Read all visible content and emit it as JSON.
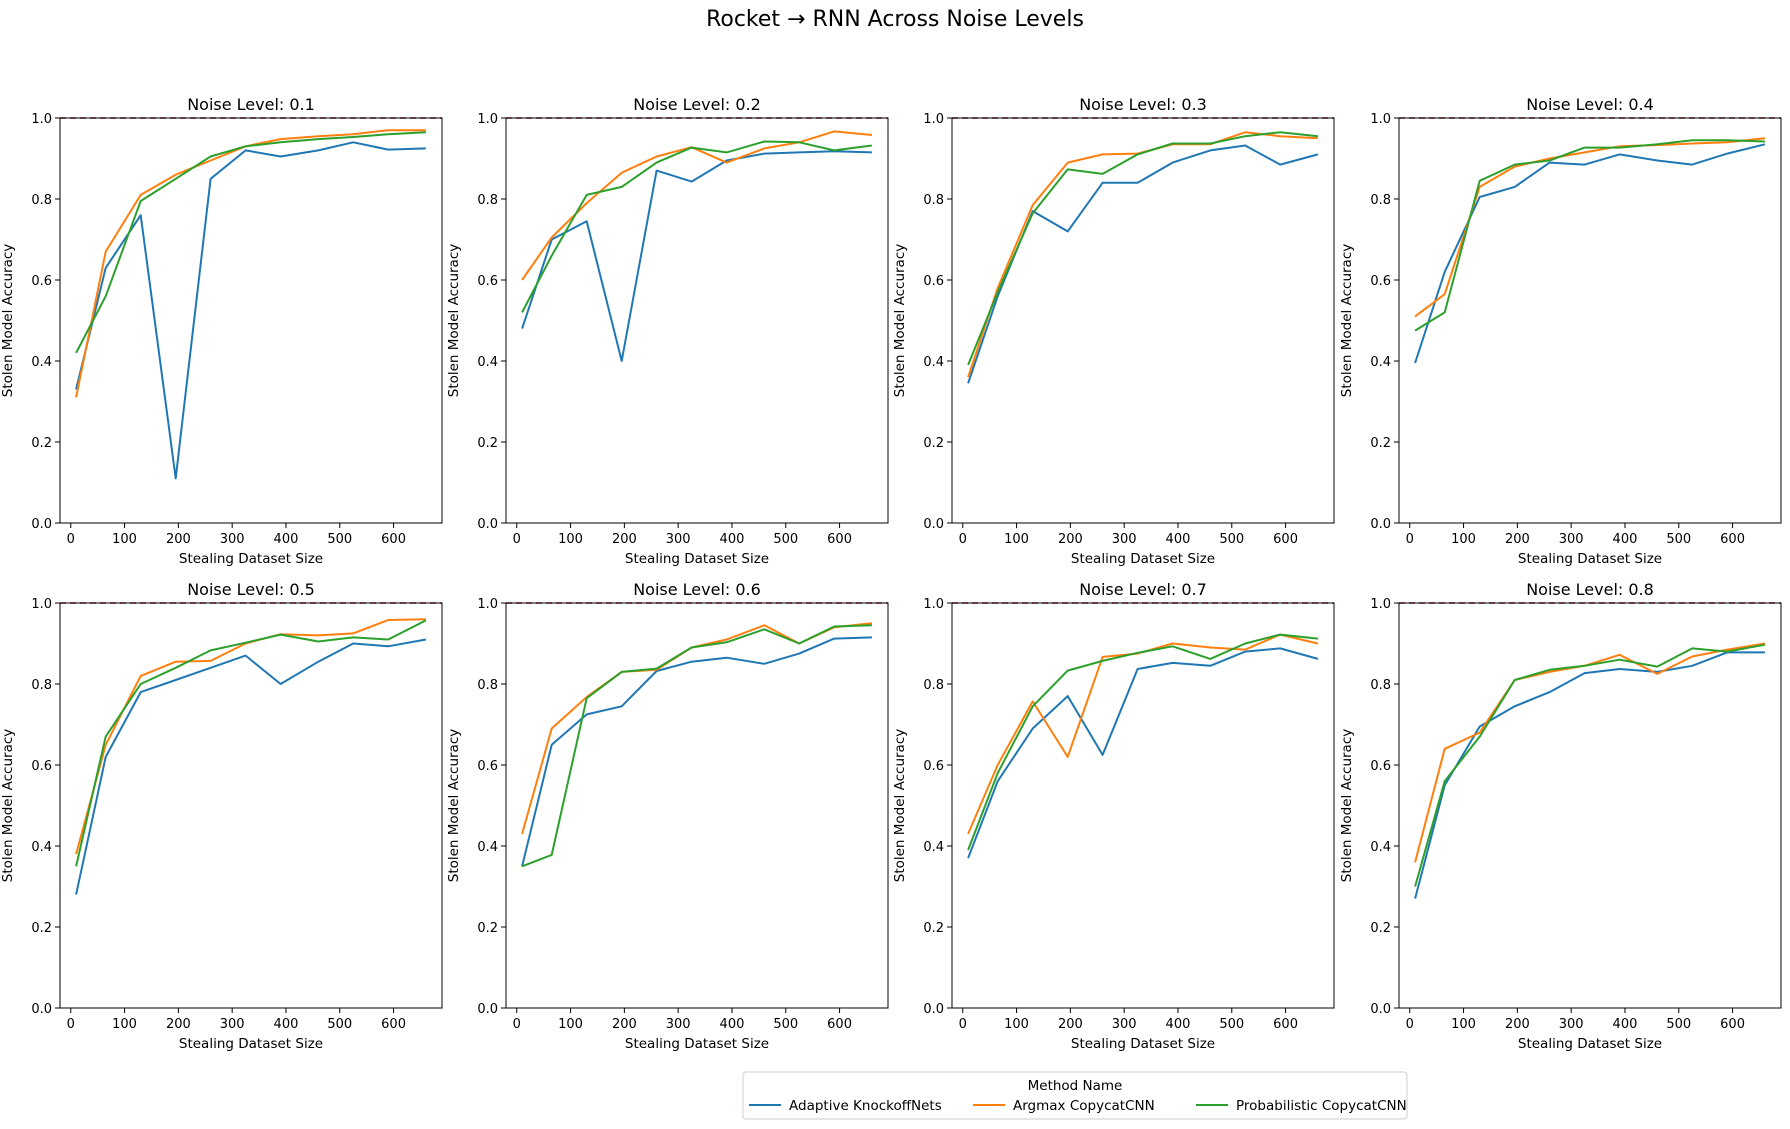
{
  "figure": {
    "title": "Rocket → RNN Across Noise Levels",
    "legend": {
      "title": "Method Name",
      "placement": "bottom-center",
      "entries": [
        {
          "name": "Adaptive KnockoffNets",
          "color": "#1f77b4"
        },
        {
          "name": "Argmax CopycatCNN",
          "color": "#ff7f0e"
        },
        {
          "name": "Probabilistic CopycatCNN",
          "color": "#2ca02c"
        }
      ]
    },
    "reference_line": {
      "y": 1.0,
      "color": "#8b0000",
      "style": "dashed"
    }
  },
  "chart_data": [
    {
      "type": "line",
      "title": "Noise Level: 0.1",
      "xlabel": "Stealing Dataset Size",
      "ylabel": "Stolen Model Accuracy",
      "xlim": [
        -20,
        690
      ],
      "ylim": [
        0,
        1
      ],
      "xticks": [
        "0",
        "100",
        "200",
        "300",
        "400",
        "500",
        "600"
      ],
      "yticks": [
        "0.0",
        "0.2",
        "0.4",
        "0.6",
        "0.8",
        "1.0"
      ],
      "x": [
        10,
        65,
        130,
        195,
        260,
        325,
        390,
        460,
        525,
        590,
        660
      ],
      "series": [
        {
          "name": "Adaptive KnockoffNets",
          "values": [
            0.33,
            0.63,
            0.76,
            0.11,
            0.85,
            0.92,
            0.905,
            0.92,
            0.94,
            0.922,
            0.925
          ]
        },
        {
          "name": "Argmax CopycatCNN",
          "values": [
            0.31,
            0.67,
            0.81,
            0.86,
            0.895,
            0.93,
            0.948,
            0.955,
            0.96,
            0.97,
            0.97
          ]
        },
        {
          "name": "Probabilistic CopycatCNN",
          "values": [
            0.42,
            0.56,
            0.795,
            0.85,
            0.905,
            0.93,
            0.94,
            0.948,
            0.953,
            0.96,
            0.965
          ]
        }
      ]
    },
    {
      "type": "line",
      "title": "Noise Level: 0.2",
      "xlabel": "Stealing Dataset Size",
      "ylabel": "Stolen Model Accuracy",
      "xlim": [
        -20,
        690
      ],
      "ylim": [
        0,
        1
      ],
      "xticks": [
        "0",
        "100",
        "200",
        "300",
        "400",
        "500",
        "600"
      ],
      "yticks": [
        "0.0",
        "0.2",
        "0.4",
        "0.6",
        "0.8",
        "1.0"
      ],
      "x": [
        10,
        65,
        130,
        195,
        260,
        325,
        390,
        460,
        525,
        590,
        660
      ],
      "series": [
        {
          "name": "Adaptive KnockoffNets",
          "values": [
            0.48,
            0.7,
            0.745,
            0.4,
            0.87,
            0.843,
            0.895,
            0.912,
            0.915,
            0.918,
            0.915
          ]
        },
        {
          "name": "Argmax CopycatCNN",
          "values": [
            0.6,
            0.705,
            0.79,
            0.865,
            0.905,
            0.928,
            0.89,
            0.925,
            0.94,
            0.967,
            0.958
          ]
        },
        {
          "name": "Probabilistic CopycatCNN",
          "values": [
            0.52,
            0.66,
            0.81,
            0.83,
            0.89,
            0.927,
            0.915,
            0.942,
            0.94,
            0.92,
            0.932
          ]
        }
      ]
    },
    {
      "type": "line",
      "title": "Noise Level: 0.3",
      "xlabel": "Stealing Dataset Size",
      "ylabel": "Stolen Model Accuracy",
      "xlim": [
        -20,
        690
      ],
      "ylim": [
        0,
        1
      ],
      "xticks": [
        "0",
        "100",
        "200",
        "300",
        "400",
        "500",
        "600"
      ],
      "yticks": [
        "0.0",
        "0.2",
        "0.4",
        "0.6",
        "0.8",
        "1.0"
      ],
      "x": [
        10,
        65,
        130,
        195,
        260,
        325,
        390,
        460,
        525,
        590,
        660
      ],
      "series": [
        {
          "name": "Adaptive KnockoffNets",
          "values": [
            0.345,
            0.56,
            0.77,
            0.72,
            0.84,
            0.84,
            0.89,
            0.92,
            0.932,
            0.885,
            0.91
          ]
        },
        {
          "name": "Argmax CopycatCNN",
          "values": [
            0.36,
            0.58,
            0.785,
            0.89,
            0.91,
            0.912,
            0.935,
            0.935,
            0.965,
            0.955,
            0.95
          ]
        },
        {
          "name": "Probabilistic CopycatCNN",
          "values": [
            0.39,
            0.57,
            0.765,
            0.873,
            0.862,
            0.91,
            0.937,
            0.937,
            0.955,
            0.965,
            0.955
          ]
        }
      ]
    },
    {
      "type": "line",
      "title": "Noise Level: 0.4",
      "xlabel": "Stealing Dataset Size",
      "ylabel": "Stolen Model Accuracy",
      "xlim": [
        -20,
        690
      ],
      "ylim": [
        0,
        1
      ],
      "xticks": [
        "0",
        "100",
        "200",
        "300",
        "400",
        "500",
        "600"
      ],
      "yticks": [
        "0.0",
        "0.2",
        "0.4",
        "0.6",
        "0.8",
        "1.0"
      ],
      "x": [
        10,
        65,
        130,
        195,
        260,
        325,
        390,
        460,
        525,
        590,
        660
      ],
      "series": [
        {
          "name": "Adaptive KnockoffNets",
          "values": [
            0.395,
            0.62,
            0.805,
            0.83,
            0.89,
            0.885,
            0.91,
            0.895,
            0.885,
            0.912,
            0.935
          ]
        },
        {
          "name": "Argmax CopycatCNN",
          "values": [
            0.51,
            0.565,
            0.83,
            0.88,
            0.9,
            0.915,
            0.93,
            0.933,
            0.937,
            0.94,
            0.95
          ]
        },
        {
          "name": "Probabilistic CopycatCNN",
          "values": [
            0.475,
            0.52,
            0.845,
            0.885,
            0.895,
            0.927,
            0.927,
            0.935,
            0.945,
            0.945,
            0.942
          ]
        }
      ]
    },
    {
      "type": "line",
      "title": "Noise Level: 0.5",
      "xlabel": "Stealing Dataset Size",
      "ylabel": "Stolen Model Accuracy",
      "xlim": [
        -20,
        690
      ],
      "ylim": [
        0,
        1
      ],
      "xticks": [
        "0",
        "100",
        "200",
        "300",
        "400",
        "500",
        "600"
      ],
      "yticks": [
        "0.0",
        "0.2",
        "0.4",
        "0.6",
        "0.8",
        "1.0"
      ],
      "x": [
        10,
        65,
        130,
        195,
        260,
        325,
        390,
        460,
        525,
        590,
        660
      ],
      "series": [
        {
          "name": "Adaptive KnockoffNets",
          "values": [
            0.28,
            0.62,
            0.78,
            0.81,
            0.84,
            0.87,
            0.8,
            0.855,
            0.9,
            0.893,
            0.91
          ]
        },
        {
          "name": "Argmax CopycatCNN",
          "values": [
            0.38,
            0.65,
            0.82,
            0.855,
            0.857,
            0.9,
            0.923,
            0.92,
            0.925,
            0.958,
            0.96
          ]
        },
        {
          "name": "Probabilistic CopycatCNN",
          "values": [
            0.35,
            0.67,
            0.8,
            0.84,
            0.883,
            0.902,
            0.922,
            0.905,
            0.915,
            0.91,
            0.957
          ]
        }
      ]
    },
    {
      "type": "line",
      "title": "Noise Level: 0.6",
      "xlabel": "Stealing Dataset Size",
      "ylabel": "Stolen Model Accuracy",
      "xlim": [
        -20,
        690
      ],
      "ylim": [
        0,
        1
      ],
      "xticks": [
        "0",
        "100",
        "200",
        "300",
        "400",
        "500",
        "600"
      ],
      "yticks": [
        "0.0",
        "0.2",
        "0.4",
        "0.6",
        "0.8",
        "1.0"
      ],
      "x": [
        10,
        65,
        130,
        195,
        260,
        325,
        390,
        460,
        525,
        590,
        660
      ],
      "series": [
        {
          "name": "Adaptive KnockoffNets",
          "values": [
            0.35,
            0.65,
            0.725,
            0.745,
            0.832,
            0.855,
            0.865,
            0.85,
            0.875,
            0.912,
            0.915
          ]
        },
        {
          "name": "Argmax CopycatCNN",
          "values": [
            0.43,
            0.69,
            0.768,
            0.83,
            0.835,
            0.89,
            0.91,
            0.945,
            0.9,
            0.94,
            0.95
          ]
        },
        {
          "name": "Probabilistic CopycatCNN",
          "values": [
            0.35,
            0.378,
            0.765,
            0.83,
            0.838,
            0.89,
            0.903,
            0.935,
            0.9,
            0.942,
            0.945
          ]
        }
      ]
    },
    {
      "type": "line",
      "title": "Noise Level: 0.7",
      "xlabel": "Stealing Dataset Size",
      "ylabel": "Stolen Model Accuracy",
      "xlim": [
        -20,
        690
      ],
      "ylim": [
        0,
        1
      ],
      "xticks": [
        "0",
        "100",
        "200",
        "300",
        "400",
        "500",
        "600"
      ],
      "yticks": [
        "0.0",
        "0.2",
        "0.4",
        "0.6",
        "0.8",
        "1.0"
      ],
      "x": [
        10,
        65,
        130,
        195,
        260,
        325,
        390,
        460,
        525,
        590,
        660
      ],
      "series": [
        {
          "name": "Adaptive KnockoffNets",
          "values": [
            0.37,
            0.56,
            0.69,
            0.77,
            0.625,
            0.837,
            0.852,
            0.845,
            0.88,
            0.888,
            0.862
          ]
        },
        {
          "name": "Argmax CopycatCNN",
          "values": [
            0.43,
            0.6,
            0.757,
            0.62,
            0.867,
            0.875,
            0.9,
            0.89,
            0.885,
            0.922,
            0.9
          ]
        },
        {
          "name": "Probabilistic CopycatCNN",
          "values": [
            0.39,
            0.58,
            0.745,
            0.833,
            0.857,
            0.877,
            0.893,
            0.862,
            0.9,
            0.922,
            0.912
          ]
        }
      ]
    },
    {
      "type": "line",
      "title": "Noise Level: 0.8",
      "xlabel": "Stealing Dataset Size",
      "ylabel": "Stolen Model Accuracy",
      "xlim": [
        -20,
        690
      ],
      "ylim": [
        0,
        1
      ],
      "xticks": [
        "0",
        "100",
        "200",
        "300",
        "400",
        "500",
        "600"
      ],
      "yticks": [
        "0.0",
        "0.2",
        "0.4",
        "0.6",
        "0.8",
        "1.0"
      ],
      "x": [
        10,
        65,
        130,
        195,
        260,
        325,
        390,
        460,
        525,
        590,
        660
      ],
      "series": [
        {
          "name": "Adaptive KnockoffNets",
          "values": [
            0.27,
            0.55,
            0.695,
            0.745,
            0.78,
            0.827,
            0.837,
            0.83,
            0.845,
            0.878,
            0.878
          ]
        },
        {
          "name": "Argmax CopycatCNN",
          "values": [
            0.36,
            0.64,
            0.68,
            0.81,
            0.83,
            0.845,
            0.872,
            0.825,
            0.868,
            0.885,
            0.9
          ]
        },
        {
          "name": "Probabilistic CopycatCNN",
          "values": [
            0.3,
            0.56,
            0.67,
            0.81,
            0.835,
            0.845,
            0.86,
            0.843,
            0.888,
            0.88,
            0.897
          ]
        }
      ]
    }
  ]
}
